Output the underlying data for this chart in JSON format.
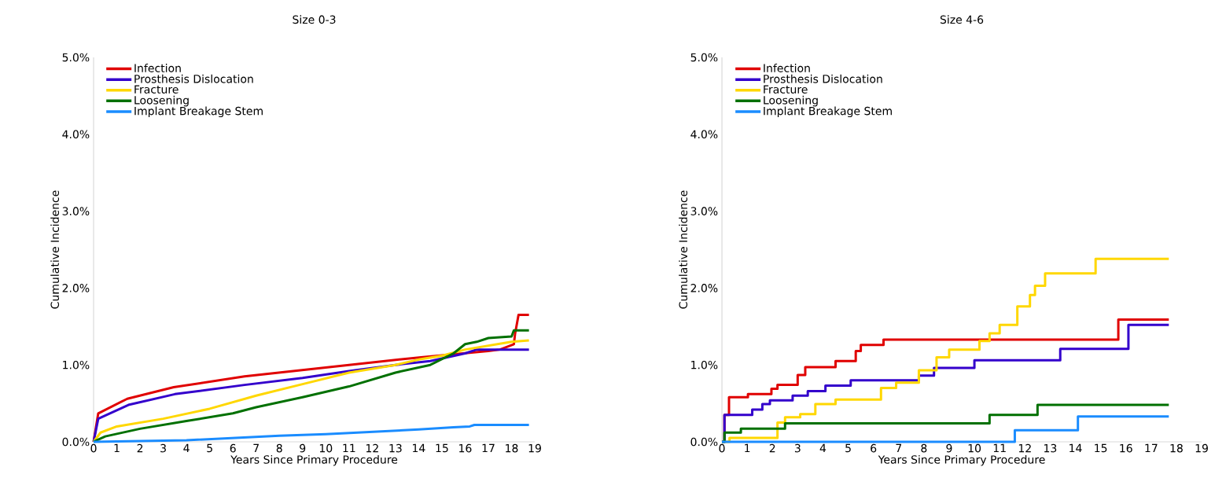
{
  "chart_data": [
    {
      "type": "line",
      "title": "Size 0-3",
      "xlabel": "Years Since Primary Procedure",
      "ylabel": "Cumulative Incidence",
      "xlim": [
        0,
        19
      ],
      "xticks": [
        0,
        1,
        2,
        3,
        4,
        5,
        6,
        7,
        8,
        9,
        10,
        11,
        12,
        13,
        14,
        15,
        16,
        17,
        18,
        19
      ],
      "ylim": [
        0,
        5
      ],
      "yticks": [
        {
          "value": 0,
          "label": "0.0%"
        },
        {
          "value": 1,
          "label": "1.0%"
        },
        {
          "value": 2,
          "label": "2.0%"
        },
        {
          "value": 3,
          "label": "3.0%"
        },
        {
          "value": 4,
          "label": "4.0%"
        },
        {
          "value": 5,
          "label": "5.0%"
        }
      ],
      "legend": "top left",
      "series": [
        {
          "name": "Infection",
          "color": "#e00000",
          "x": [
            0,
            0.2,
            1.45,
            3.45,
            6.5,
            11.0,
            14.1,
            17.0,
            17.5,
            18.1,
            18.15,
            18.3,
            18.75
          ],
          "values": [
            0,
            0.37,
            0.56,
            0.71,
            0.85,
            1.0,
            1.1,
            1.18,
            1.2,
            1.27,
            1.4,
            1.65,
            1.65
          ]
        },
        {
          "name": "Prosthesis Dislocation",
          "color": "#3300cc",
          "x": [
            0,
            0.2,
            1.5,
            3.5,
            6.5,
            9,
            11,
            13,
            14.5,
            16,
            16.5,
            18.75
          ],
          "values": [
            0,
            0.3,
            0.48,
            0.62,
            0.74,
            0.83,
            0.92,
            1.0,
            1.05,
            1.15,
            1.2,
            1.2
          ]
        },
        {
          "name": "Fracture",
          "color": "#ffd700",
          "x": [
            0,
            0.3,
            1,
            3,
            5,
            7,
            9,
            11,
            13,
            14,
            15,
            16,
            17,
            18,
            18.75
          ],
          "values": [
            0,
            0.12,
            0.2,
            0.3,
            0.43,
            0.6,
            0.75,
            0.9,
            1.0,
            1.07,
            1.12,
            1.2,
            1.25,
            1.3,
            1.32
          ]
        },
        {
          "name": "Loosening",
          "color": "#007000",
          "x": [
            0,
            0.5,
            2,
            4,
            6,
            7,
            9,
            11,
            13,
            14.5,
            15.5,
            16,
            16.5,
            17,
            18,
            18.1,
            18.75
          ],
          "values": [
            0,
            0.07,
            0.17,
            0.27,
            0.37,
            0.45,
            0.58,
            0.72,
            0.9,
            1.0,
            1.15,
            1.27,
            1.3,
            1.35,
            1.37,
            1.45,
            1.45
          ]
        },
        {
          "name": "Implant Breakage Stem",
          "color": "#1a8cff",
          "x": [
            0,
            2,
            4,
            6,
            8,
            10,
            12,
            14,
            15.5,
            16.2,
            16.4,
            18.75
          ],
          "values": [
            0,
            0.01,
            0.02,
            0.05,
            0.08,
            0.1,
            0.13,
            0.16,
            0.19,
            0.2,
            0.22,
            0.22
          ]
        }
      ]
    },
    {
      "type": "step",
      "title": "Size 4-6",
      "xlabel": "Years Since Primary Procedure",
      "ylabel": "Cumulative Incidence",
      "xlim": [
        0,
        19
      ],
      "xticks": [
        0,
        1,
        2,
        3,
        4,
        5,
        6,
        7,
        8,
        9,
        10,
        11,
        12,
        13,
        14,
        15,
        16,
        17,
        18,
        19
      ],
      "ylim": [
        0,
        5
      ],
      "yticks": [
        {
          "value": 0,
          "label": "0.0%"
        },
        {
          "value": 1,
          "label": "1.0%"
        },
        {
          "value": 2,
          "label": "2.0%"
        },
        {
          "value": 3,
          "label": "3.0%"
        },
        {
          "value": 4,
          "label": "4.0%"
        },
        {
          "value": 5,
          "label": "5.0%"
        }
      ],
      "legend": "top left",
      "series": [
        {
          "name": "Infection",
          "color": "#e00000",
          "x": [
            0,
            0.1,
            0.28,
            1.03,
            1.96,
            2.2,
            3.0,
            3.3,
            4.5,
            5.3,
            5.5,
            6.4,
            15.7,
            17.7
          ],
          "values": [
            0,
            0.35,
            0.58,
            0.62,
            0.69,
            0.74,
            0.87,
            0.97,
            1.05,
            1.18,
            1.26,
            1.33,
            1.59,
            1.59
          ]
        },
        {
          "name": "Prosthesis Dislocation",
          "color": "#3300cc",
          "x": [
            0,
            0.1,
            1.2,
            1.6,
            1.9,
            2.8,
            3.4,
            4.1,
            5.1,
            7.8,
            8.4,
            10.0,
            13.4,
            16.1,
            17.7
          ],
          "values": [
            0,
            0.35,
            0.42,
            0.49,
            0.54,
            0.6,
            0.66,
            0.73,
            0.8,
            0.86,
            0.96,
            1.06,
            1.21,
            1.52,
            1.52
          ]
        },
        {
          "name": "Fracture",
          "color": "#ffd700",
          "x": [
            0,
            0.3,
            2.2,
            2.5,
            3.1,
            3.7,
            4.5,
            6.3,
            6.9,
            7.8,
            8.5,
            9.0,
            10.2,
            10.6,
            11.0,
            11.7,
            12.2,
            12.4,
            12.8,
            14.8,
            17.7
          ],
          "values": [
            0,
            0.05,
            0.25,
            0.32,
            0.36,
            0.49,
            0.55,
            0.7,
            0.77,
            0.93,
            1.1,
            1.2,
            1.31,
            1.41,
            1.52,
            1.76,
            1.91,
            2.03,
            2.19,
            2.38,
            2.38
          ]
        },
        {
          "name": "Loosening",
          "color": "#007000",
          "x": [
            0,
            0.1,
            0.75,
            2.5,
            10.6,
            12.5,
            17.7
          ],
          "values": [
            0,
            0.12,
            0.17,
            0.24,
            0.35,
            0.48,
            0.48
          ]
        },
        {
          "name": "Implant Breakage Stem",
          "color": "#1a8cff",
          "x": [
            0,
            11.6,
            14.1,
            17.7
          ],
          "values": [
            0,
            0.15,
            0.33,
            0.33
          ]
        }
      ]
    }
  ]
}
